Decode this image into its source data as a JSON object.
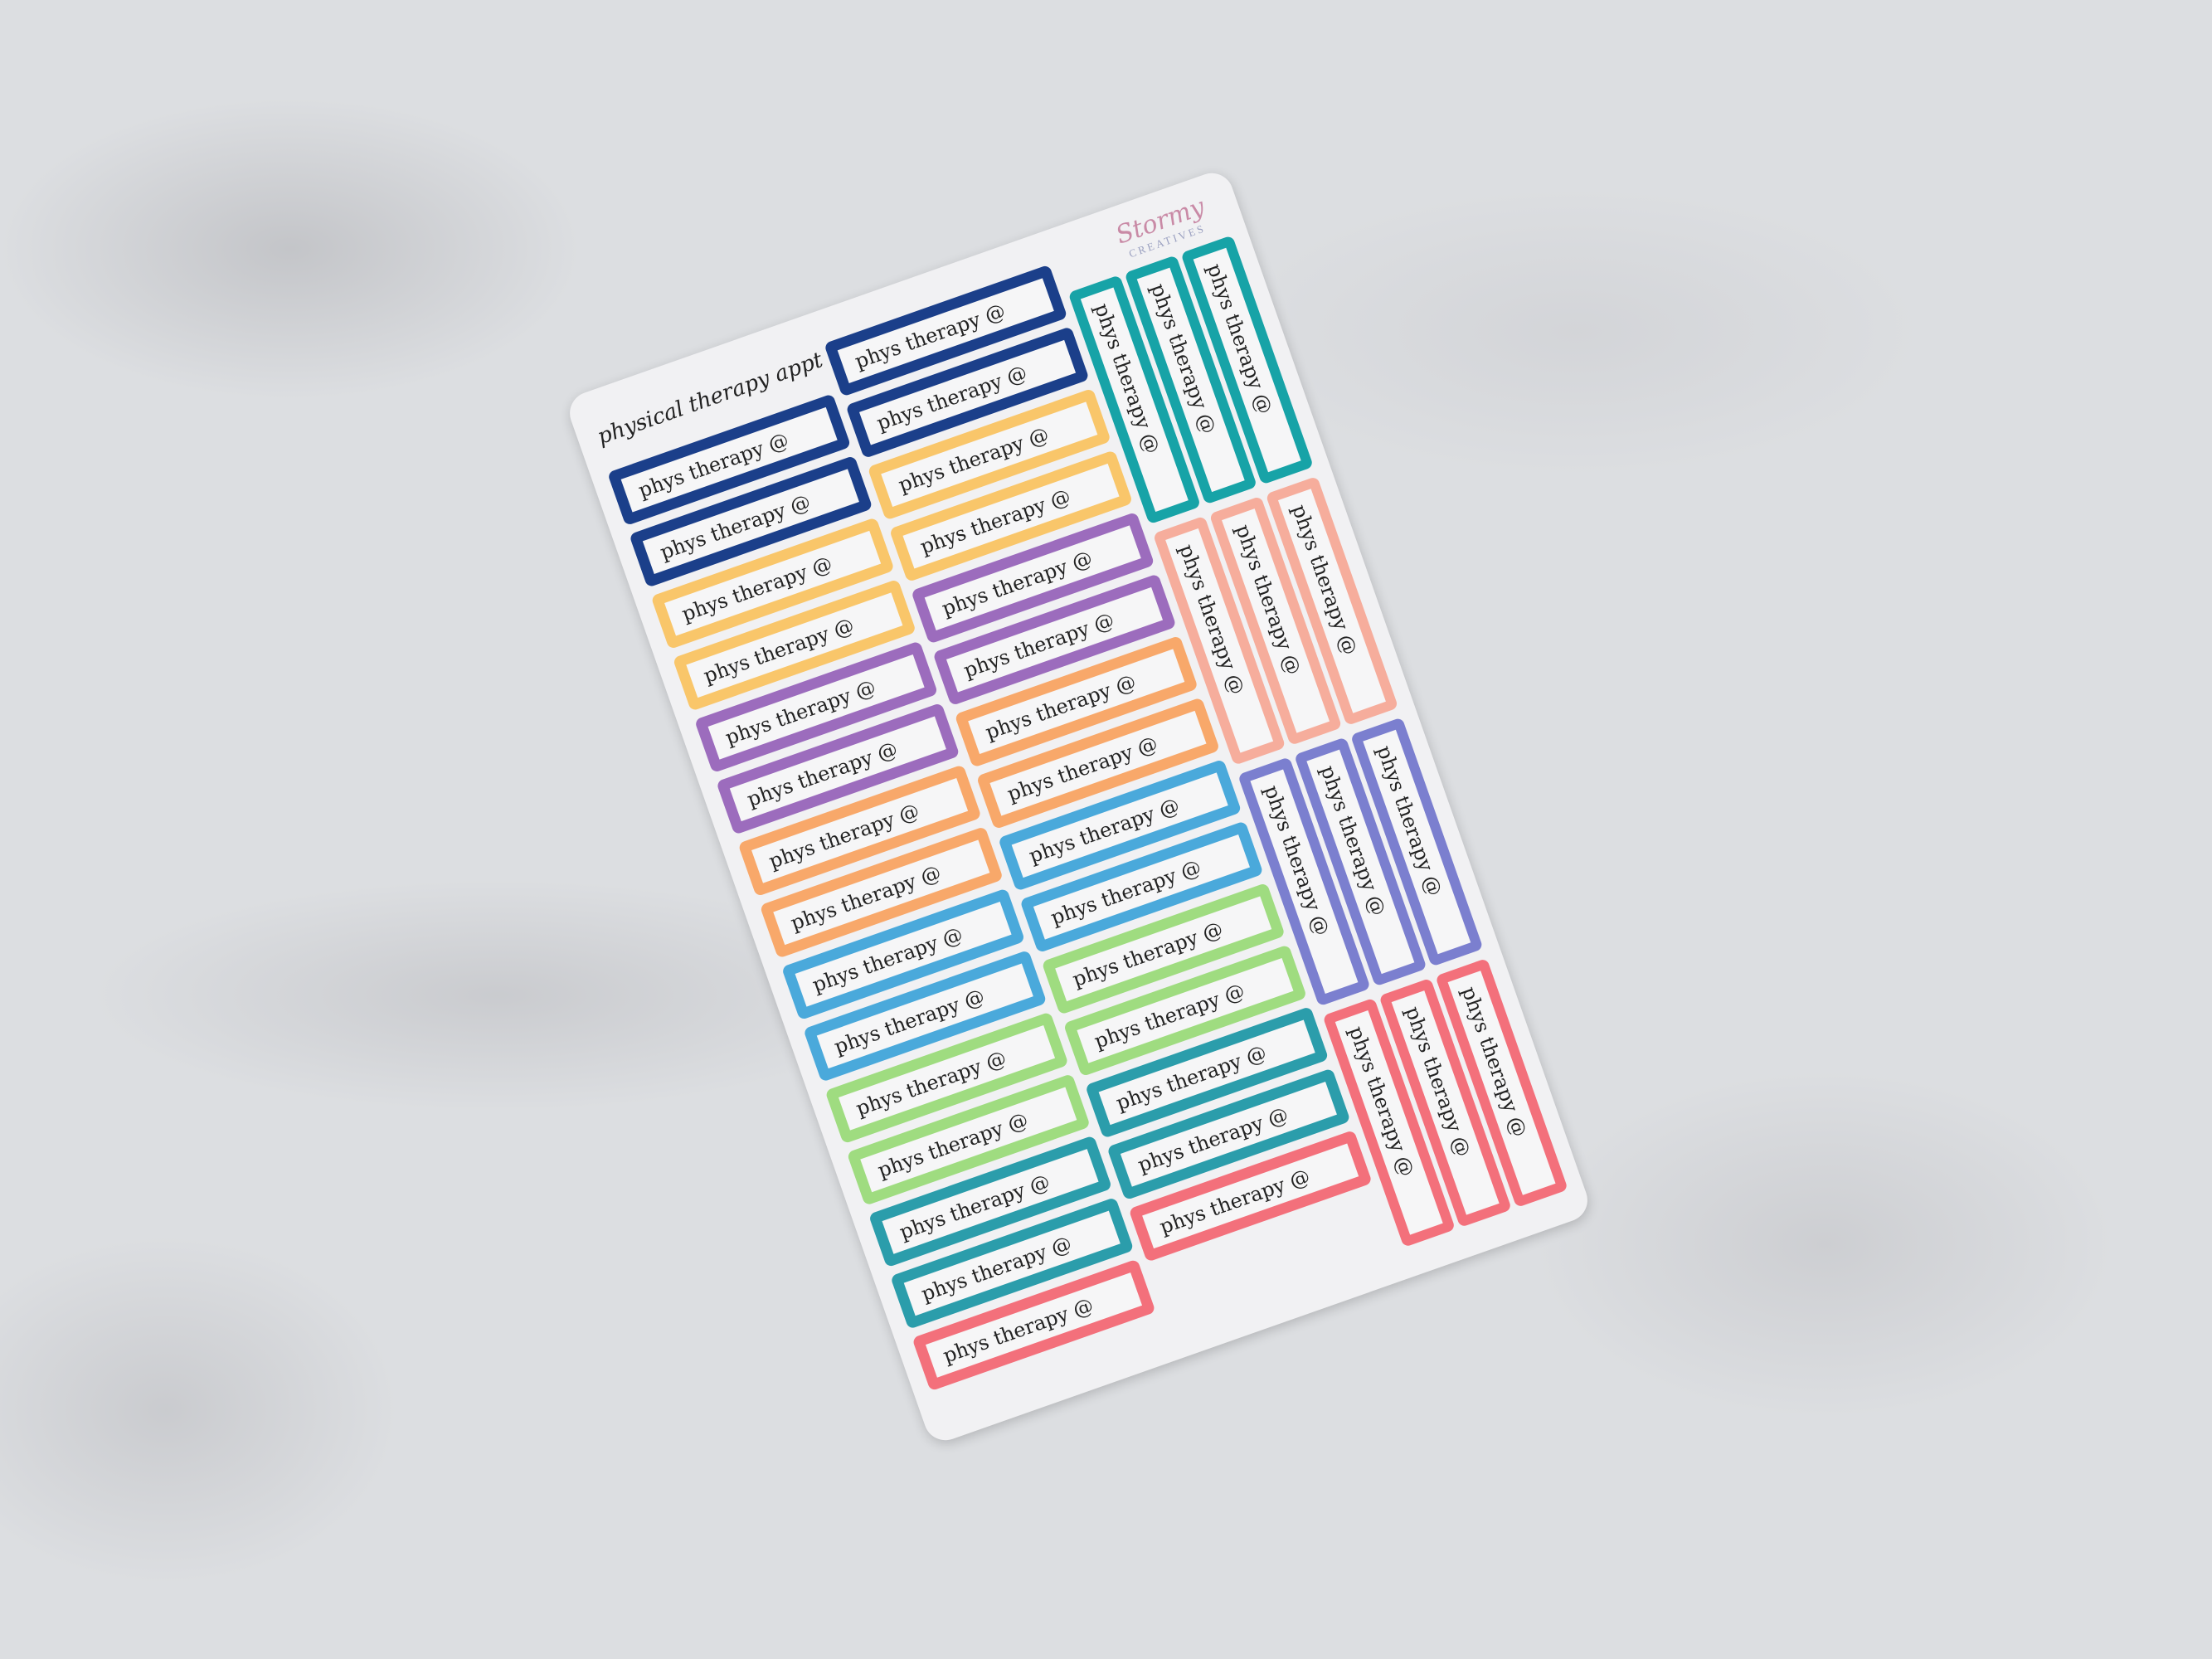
{
  "sheet": {
    "header": "physical therapy appt",
    "logo": {
      "script": "Stormy",
      "sub": "CREATIVES"
    },
    "sticker_label": "phys therapy @",
    "horizontal_left_colors": [
      "#1b3f8a",
      "#1b3f8a",
      "#f9c66a",
      "#f9c66a",
      "#9c6cbd",
      "#9c6cbd",
      "#f8a86a",
      "#f8a86a",
      "#4aa9db",
      "#4aa9db",
      "#9fdc80",
      "#9fdc80",
      "#2b9dab",
      "#2b9dab",
      "#f3707b"
    ],
    "horizontal_right_colors": [
      "#1b3f8a",
      "#1b3f8a",
      "#f9c66a",
      "#f9c66a",
      "#9c6cbd",
      "#9c6cbd",
      "#f8a86a",
      "#f8a86a",
      "#4aa9db",
      "#4aa9db",
      "#9fdc80",
      "#9fdc80",
      "#2b9dab",
      "#2b9dab",
      "#f3707b"
    ],
    "vertical_groups": [
      "#17a3a7",
      "#f6ad9c",
      "#7b7fcf",
      "#f3707b"
    ]
  }
}
